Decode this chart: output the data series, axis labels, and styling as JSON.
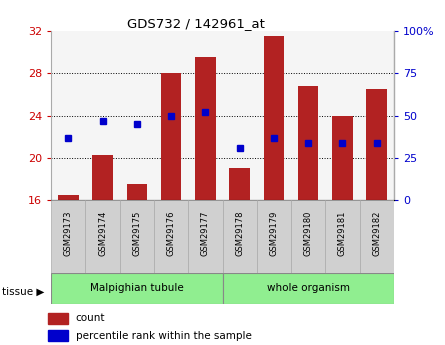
{
  "title": "GDS732 / 142961_at",
  "samples": [
    "GSM29173",
    "GSM29174",
    "GSM29175",
    "GSM29176",
    "GSM29177",
    "GSM29178",
    "GSM29179",
    "GSM29180",
    "GSM29181",
    "GSM29182"
  ],
  "counts": [
    16.5,
    20.3,
    17.5,
    28.0,
    29.5,
    19.0,
    31.5,
    26.8,
    24.0,
    26.5
  ],
  "percentiles": [
    37,
    47,
    45,
    50,
    52,
    31,
    37,
    34,
    34,
    34
  ],
  "ylim_left": [
    16,
    32
  ],
  "ylim_right": [
    0,
    100
  ],
  "yticks_left": [
    16,
    20,
    24,
    28,
    32
  ],
  "yticks_right": [
    0,
    25,
    50,
    75,
    100
  ],
  "bar_color": "#b22222",
  "dot_color": "#0000cc",
  "bar_width": 0.6,
  "tissue_groups": [
    {
      "label": "Malpighian tubule",
      "start": 0,
      "end": 4,
      "color": "#90ee90"
    },
    {
      "label": "whole organism",
      "start": 5,
      "end": 9,
      "color": "#90ee90"
    }
  ],
  "bg_color": "#ffffff",
  "plot_bg": "#f5f5f5",
  "tick_color_left": "#cc0000",
  "tick_color_right": "#0000cc",
  "label_bg": "#d0d0d0",
  "label_border": "#aaaaaa",
  "grid_ticks": [
    20,
    24,
    28
  ],
  "legend_count_label": "count",
  "legend_pct_label": "percentile rank within the sample"
}
